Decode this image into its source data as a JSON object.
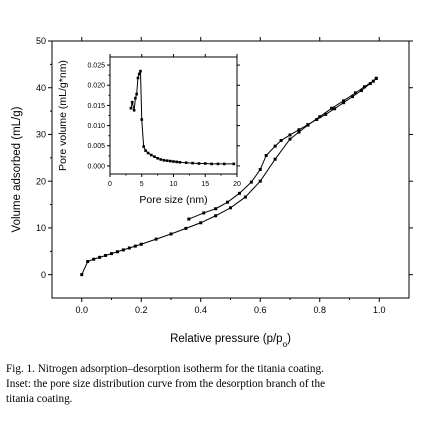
{
  "chart_data": [
    {
      "type": "line",
      "xlabel": "Relative pressure (p/p",
      "xlabel_sub": "o",
      "xlabel_end": ")",
      "ylabel": "Volume adsorbed (mL/g)",
      "xlim": [
        -0.1,
        1.1
      ],
      "ylim": [
        -5,
        50
      ],
      "x_ticks": [
        0.0,
        0.2,
        0.4,
        0.6,
        0.8,
        1.0
      ],
      "x_tick_labels": [
        "0.0",
        "0.2",
        "0.4",
        "0.6",
        "0.8",
        "1.0"
      ],
      "y_ticks": [
        0,
        10,
        20,
        30,
        40,
        50
      ],
      "y_tick_labels": [
        "0",
        "10",
        "20",
        "30",
        "40",
        "50"
      ],
      "grid": false,
      "series": [
        {
          "branch": "adsorption",
          "x": [
            0.0,
            0.02,
            0.04,
            0.06,
            0.08,
            0.1,
            0.12,
            0.14,
            0.16,
            0.18,
            0.2,
            0.25,
            0.3,
            0.35,
            0.4,
            0.45,
            0.5,
            0.55,
            0.6,
            0.65,
            0.7,
            0.73,
            0.76,
            0.8,
            0.84,
            0.88,
            0.92,
            0.95,
            0.98,
            0.99
          ],
          "y": [
            0,
            2.8,
            3.3,
            3.7,
            4.1,
            4.5,
            4.9,
            5.3,
            5.7,
            6.1,
            6.5,
            7.6,
            8.7,
            9.9,
            11.1,
            12.6,
            14.3,
            16.6,
            20.0,
            24.7,
            29.0,
            30.5,
            32.0,
            33.8,
            35.6,
            37.2,
            38.9,
            40.2,
            41.4,
            42.0
          ]
        },
        {
          "branch": "desorption",
          "x": [
            0.99,
            0.97,
            0.94,
            0.91,
            0.88,
            0.85,
            0.82,
            0.79,
            0.76,
            0.73,
            0.7,
            0.67,
            0.65,
            0.62,
            0.6,
            0.57,
            0.53,
            0.49,
            0.45,
            0.41,
            0.36
          ],
          "y": [
            42.0,
            40.9,
            39.4,
            38.1,
            36.8,
            35.5,
            34.3,
            33.2,
            32.1,
            31.0,
            29.9,
            28.7,
            27.5,
            25.5,
            22.5,
            19.8,
            17.4,
            15.5,
            14.1,
            13.2,
            11.9
          ]
        }
      ]
    },
    {
      "type": "line",
      "inset": true,
      "xlabel": "Pore size (nm)",
      "ylabel": "Pore volume (mL/g*nm)",
      "xlim": [
        0,
        20
      ],
      "ylim": [
        -0.002,
        0.027
      ],
      "x_ticks": [
        0,
        5,
        10,
        15,
        20
      ],
      "x_tick_labels": [
        "0",
        "5",
        "10",
        "15",
        "20"
      ],
      "y_ticks": [
        0.0,
        0.005,
        0.01,
        0.015,
        0.02,
        0.025
      ],
      "y_tick_labels": [
        "0.000",
        "0.005",
        "0.010",
        "0.015",
        "0.020",
        "0.025"
      ],
      "grid": false,
      "series": [
        {
          "x": [
            3.3,
            3.5,
            3.8,
            4.0,
            4.2,
            4.4,
            4.6,
            4.8,
            5.0,
            5.3,
            5.6,
            6.0,
            6.5,
            7.0,
            7.5,
            8.0,
            8.5,
            9.0,
            9.5,
            10.0,
            10.5,
            11.0,
            12.0,
            13.0,
            14.0,
            15.0,
            16.0,
            17.0,
            18.0,
            19.5
          ],
          "y": [
            0.0143,
            0.0158,
            0.0138,
            0.0168,
            0.0178,
            0.0218,
            0.0228,
            0.0235,
            0.0115,
            0.0048,
            0.0038,
            0.0032,
            0.0027,
            0.0023,
            0.0019,
            0.0016,
            0.0014,
            0.0013,
            0.0012,
            0.0011,
            0.001,
            0.0009,
            0.0008,
            0.0007,
            0.0006,
            0.0006,
            0.0005,
            0.0005,
            0.0005,
            0.0005
          ]
        }
      ]
    }
  ],
  "caption": {
    "line1": "Fig.  1.  Nitrogen  adsorption–desorption  isotherm  for  the  titania  coating.",
    "line2": "Inset:  the  pore  size  distribution  curve  from  the  desorption  branch  of  the",
    "line3": "titania coating."
  }
}
